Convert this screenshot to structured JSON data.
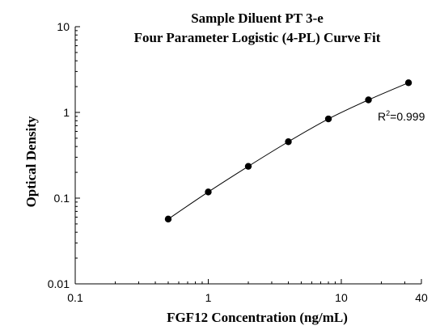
{
  "chart_data": {
    "type": "scatter",
    "title_line1": "Sample Diluent PT 3-e",
    "title_line2": "Four Parameter Logistic (4-PL) Curve Fit",
    "xlabel": "FGF12 Concentration (ng/mL)",
    "ylabel": "Optical Density",
    "xscale": "log",
    "yscale": "log",
    "xlim": [
      0.1,
      40
    ],
    "ylim": [
      0.01,
      10
    ],
    "x_tick_labels": [
      "0.1",
      "1",
      "10",
      "40"
    ],
    "x_ticks": [
      0.1,
      1,
      10,
      40
    ],
    "y_tick_labels": [
      "0.01",
      "0.1",
      "1",
      "10"
    ],
    "y_ticks": [
      0.01,
      0.1,
      1,
      10
    ],
    "series": [
      {
        "x": [
          0.5,
          1,
          2,
          4,
          8,
          16,
          32
        ],
        "y": [
          0.057,
          0.118,
          0.235,
          0.455,
          0.84,
          1.4,
          2.22
        ]
      }
    ],
    "fit_line": "4-PL curve through points",
    "annotation": {
      "r_prefix": "R",
      "r_sup": "2",
      "r_value": "=0.999"
    },
    "grid": false,
    "colors": {
      "line": "#000000",
      "marker": "#000000",
      "axis": "#000000"
    }
  }
}
